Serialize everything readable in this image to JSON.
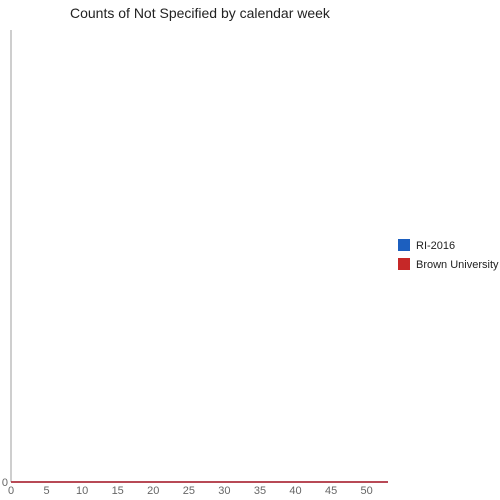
{
  "chart_data": {
    "type": "line",
    "title": "Counts of Not Specified by calendar week",
    "xlabel": "",
    "ylabel": "",
    "xlim": [
      0,
      53
    ],
    "ylim": [
      0,
      1
    ],
    "x_ticks": [
      0,
      5,
      10,
      15,
      20,
      25,
      30,
      35,
      40,
      45,
      50
    ],
    "y_ticks": [
      0
    ],
    "grid": false,
    "legend_position": "right",
    "series": [
      {
        "name": "RI-2016",
        "color": "#1c5fbf",
        "x": [
          0,
          53
        ],
        "y": [
          0,
          0
        ]
      },
      {
        "name": "Brown University",
        "color": "#c62828",
        "x": [
          0,
          53
        ],
        "y": [
          0,
          0
        ]
      }
    ]
  }
}
